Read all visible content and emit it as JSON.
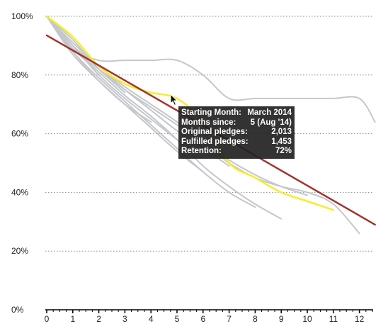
{
  "chart_data": {
    "type": "line",
    "title": "",
    "xlabel": "",
    "ylabel": "",
    "xlim": [
      0,
      12.6
    ],
    "ylim": [
      0,
      100
    ],
    "x_ticks": [
      "0",
      "1",
      "2",
      "3",
      "4",
      "5",
      "6",
      "7",
      "8",
      "9",
      "10",
      "11",
      "12"
    ],
    "y_ticks": [
      {
        "value": 0,
        "label": "0%"
      },
      {
        "value": 20,
        "label": "20%"
      },
      {
        "value": 40,
        "label": "40%"
      },
      {
        "value": 60,
        "label": "60%"
      },
      {
        "value": 80,
        "label": "80%"
      },
      {
        "value": 100,
        "label": "100%"
      }
    ],
    "grid": true,
    "colors": {
      "cohort": "#c4c7cb",
      "highlight": "#f4ee2a",
      "trend": "#a3342a",
      "grid": "#8a8a8a"
    },
    "series": [
      {
        "kind": "cohort",
        "x": [
          0,
          1,
          2,
          3,
          4,
          5,
          6,
          7,
          8,
          9,
          10,
          11,
          12,
          12.6
        ],
        "y": [
          100,
          89,
          85,
          85,
          85,
          85,
          80,
          72,
          72,
          72,
          72,
          72,
          72,
          64
        ]
      },
      {
        "kind": "cohort",
        "x": [
          0,
          1,
          2,
          3,
          4,
          5,
          6,
          7,
          8,
          9,
          10,
          11,
          12
        ],
        "y": [
          100,
          89,
          82,
          75,
          69,
          63,
          57,
          50,
          45,
          42,
          40,
          36,
          26
        ]
      },
      {
        "kind": "cohort",
        "x": [
          0,
          1,
          2,
          3,
          4,
          5,
          6,
          7,
          8,
          9,
          10
        ],
        "y": [
          100,
          90,
          83,
          76,
          70,
          64,
          57,
          51,
          46,
          42,
          39
        ]
      },
      {
        "kind": "cohort",
        "x": [
          0,
          1,
          2,
          3,
          4,
          5,
          6,
          7,
          8,
          9
        ],
        "y": [
          100,
          89,
          81,
          73,
          66,
          58,
          49,
          42,
          36,
          31
        ]
      },
      {
        "kind": "cohort",
        "x": [
          0,
          1,
          2,
          3,
          4,
          5,
          6,
          7,
          8
        ],
        "y": [
          100,
          88,
          79,
          71,
          63,
          55,
          47,
          40,
          35
        ]
      },
      {
        "kind": "cohort",
        "x": [
          0,
          1,
          2,
          3,
          4,
          5,
          6,
          7
        ],
        "y": [
          100,
          91,
          83,
          75,
          68,
          61,
          55,
          49
        ]
      },
      {
        "kind": "cohort",
        "x": [
          0,
          1,
          2,
          3,
          4,
          5,
          6
        ],
        "y": [
          100,
          87,
          78,
          70,
          62,
          54,
          47
        ]
      },
      {
        "kind": "cohort",
        "x": [
          0,
          1,
          2,
          3,
          4,
          5
        ],
        "y": [
          100,
          90,
          80,
          72,
          65,
          58
        ]
      },
      {
        "kind": "cohort",
        "x": [
          0,
          1,
          2,
          3,
          4
        ],
        "y": [
          100,
          88,
          78,
          70,
          64
        ]
      },
      {
        "kind": "cohort",
        "x": [
          0,
          1,
          2,
          3
        ],
        "y": [
          100,
          92,
          82,
          74
        ]
      },
      {
        "kind": "highlight",
        "x": [
          0,
          1,
          2,
          3,
          4,
          5,
          6,
          7,
          8,
          9,
          10,
          11
        ],
        "y": [
          100,
          93,
          83,
          77,
          74,
          72,
          64,
          50,
          45,
          40,
          37,
          34
        ]
      },
      {
        "kind": "trend",
        "x": [
          0,
          12.6
        ],
        "y": [
          93.5,
          29
        ]
      }
    ]
  },
  "tooltip": {
    "rows": [
      {
        "label": "Starting Month:",
        "value": "March 2014"
      },
      {
        "label": "Months since:",
        "value": "5 (Aug '14)"
      },
      {
        "label": "Original pledges:",
        "value": "2,013"
      },
      {
        "label": "Fulfilled pledges:",
        "value": "1,453"
      },
      {
        "label": "Retention:",
        "value": "72%"
      }
    ]
  }
}
